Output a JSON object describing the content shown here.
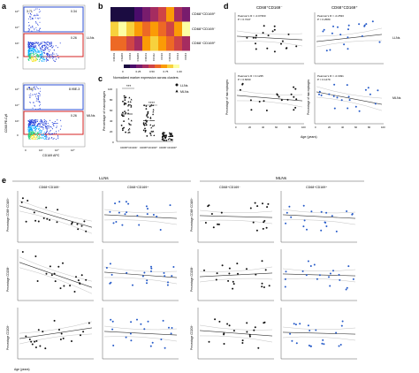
{
  "panel_letters": [
    "a",
    "b",
    "c",
    "d",
    "e"
  ],
  "panel_a": {
    "top": {
      "q1": "3.71",
      "q2": "0.34",
      "q4": "0.26",
      "side_label": "LLNs"
    },
    "bottom": {
      "q1": "0.087",
      "q2": "8.95E-3",
      "q4": "0.26",
      "side_label": "MLNs"
    },
    "y_axis_label": "CD68 PE-Cy5",
    "x_axis_label": "CD169 APC",
    "y_ticks": [
      "10⁵",
      "10⁴",
      "10³",
      "0"
    ],
    "x_ticks": [
      "0",
      "10³",
      "10⁴",
      "10⁵"
    ]
  },
  "panel_b": {
    "row_labels": [
      "CD68⁺CD169⁺",
      "CD68⁺CD169⁻",
      "CD68⁻CD169⁺"
    ],
    "column_labels": [
      "CD169",
      "CD206",
      "CD64",
      "CD206",
      "CD163",
      "CD11c",
      "CD16",
      "CD169",
      "CD14",
      "CD64"
    ],
    "legend_ticks": [
      "0",
      "0.25",
      "0.50",
      "0.75",
      "1.00"
    ],
    "legend_title": "Normalized marker expression across clusters",
    "colors": [
      "#1b0c41",
      "#4a0c6b",
      "#781c6d",
      "#a52c60",
      "#cf4446",
      "#ed6925",
      "#fb9b06",
      "#f7d13d",
      "#fcffa4"
    ]
  },
  "panel_c": {
    "y_axis_label": "Percentage of macrophages",
    "y_ticks": [
      "100",
      "80",
      "60",
      "40",
      "20",
      "0"
    ],
    "legend": [
      "LLNs",
      "MLNs"
    ],
    "significance": [
      "***",
      "****"
    ],
    "groups": [
      "CD68⁺CD169⁻",
      "CD68⁺CD169⁺",
      "CD68⁻CD169⁺"
    ]
  },
  "panel_d": {
    "col_titles": [
      "CD68⁺CD169⁻",
      "CD68⁺CD169⁺"
    ],
    "row_tags": [
      "LLNs",
      "MLNs"
    ],
    "stats": {
      "llns_left": [
        "Pearson's R = -0.07360",
        "P = 0.7447"
      ],
      "llns_right": [
        "Pearson's R = -0.2533",
        "P = 0.2580"
      ],
      "mlns_left": [
        "Pearson's R = 0.1235",
        "P = 0.6090"
      ],
      "mlns_right": [
        "Pearson's R = -0.3491",
        "P = 0.1479"
      ]
    },
    "y_label": "Percentage of macrophages",
    "x_label": "Age (years)",
    "x_ticks": [
      "0",
      "20",
      "40",
      "60",
      "80",
      "100"
    ]
  },
  "panel_e": {
    "group_titles": [
      "LLNs",
      "MLNs"
    ],
    "col_titles": [
      "CD68⁺CD169⁻",
      "CD68⁺CD169⁺",
      "CD68⁺CD169⁻",
      "CD68⁺CD169⁺"
    ],
    "row_y_labels": [
      "Percentage CD68⁺CD169⁺",
      "Percentage CD206⁺",
      "Percentage CD209⁺"
    ],
    "x_label": "Age (years)"
  }
}
